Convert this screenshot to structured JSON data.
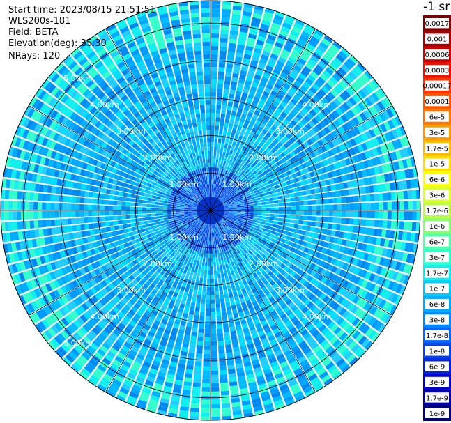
{
  "info": {
    "start_time": "Start time: 2023/08/15 21:51:51",
    "instrument": "WLS200s-181",
    "field": "Field: BETA",
    "elevation": "Elevation(deg): 35.30",
    "nrays": "NRays: 120"
  },
  "colorbar": {
    "unit": "-1 sr",
    "labels": [
      "0.0017",
      "0.001",
      "0.0006",
      "0.0003",
      "0.00017",
      "0.0001",
      "6e-5",
      "3e-5",
      "1.7e-5",
      "1e-5",
      "6e-6",
      "3e-6",
      "1.7e-6",
      "1e-6",
      "6e-7",
      "3e-7",
      "1.7e-7",
      "1e-7",
      "6e-8",
      "3e-8",
      "1.7e-8",
      "1e-8",
      "6e-9",
      "3e-9",
      "1.7e-9",
      "1e-9"
    ],
    "colors": [
      "#7f0000",
      "#a50000",
      "#cc0000",
      "#ee1100",
      "#ff3300",
      "#ff5500",
      "#ff7700",
      "#ff9900",
      "#ffbb00",
      "#ffdd00",
      "#ffff00",
      "#ddff22",
      "#bbff44",
      "#88ff77",
      "#55ffaa",
      "#33ffcc",
      "#11eeee",
      "#00ccff",
      "#00aaff",
      "#0088ff",
      "#0066ff",
      "#0044ee",
      "#0022dd",
      "#0000cc",
      "#0000a0",
      "#000077"
    ]
  },
  "chart_data": {
    "type": "heatmap",
    "projection": "polar-ppi",
    "n_rays": 120,
    "range_rings_km": [
      1,
      2,
      3,
      4,
      5
    ],
    "ring_labels": [
      "1.00km",
      "2.00km",
      "3.00km",
      "4.00km",
      "5.00km"
    ],
    "spokes_deg": [
      0,
      30,
      60,
      90,
      120,
      150,
      180,
      210,
      240,
      270,
      300,
      330
    ],
    "max_range_km": 5.6,
    "dominant_value_range": [
      "1e-8",
      "1.7e-7"
    ]
  }
}
